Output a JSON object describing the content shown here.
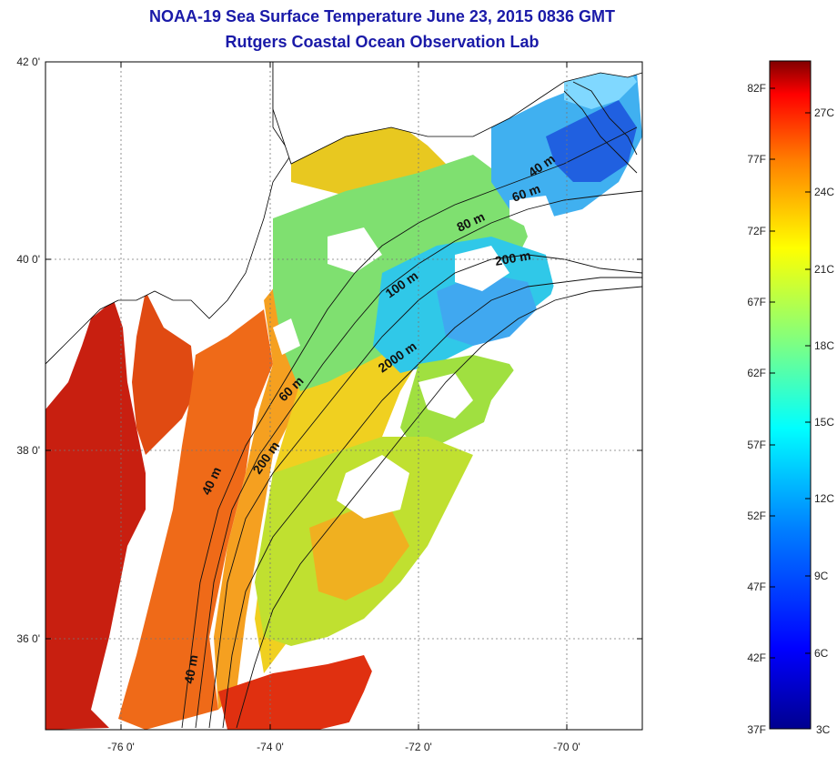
{
  "title": {
    "line1": "NOAA-19 Sea Surface Temperature June 23, 2015 0836 GMT",
    "line2": "Rutgers Coastal Ocean Observation Lab"
  },
  "map": {
    "lat_ticks": [
      "42 0'",
      "40 0'",
      "38 0'",
      "36 0'"
    ],
    "lon_ticks": [
      "-76 0'",
      "-74 0'",
      "-72 0'",
      "-70 0'"
    ],
    "contour_labels": [
      "40 m",
      "60 m",
      "80 m",
      "200 m",
      "100 m",
      "2000 m",
      "60 m",
      "200 m",
      "40 m",
      "40 m"
    ]
  },
  "colorbar": {
    "fahrenheit": [
      "82F",
      "77F",
      "72F",
      "67F",
      "62F",
      "57F",
      "52F",
      "47F",
      "42F",
      "37F"
    ],
    "celsius": [
      "27C",
      "24C",
      "21C",
      "18C",
      "15C",
      "12C",
      "9C",
      "6C",
      "3C"
    ]
  },
  "colors": {
    "title": "#1a1aa8",
    "land": "#ffffff",
    "cloud": "#ffffff",
    "warm": "#d22a0e",
    "cool": "#36a8ff"
  }
}
